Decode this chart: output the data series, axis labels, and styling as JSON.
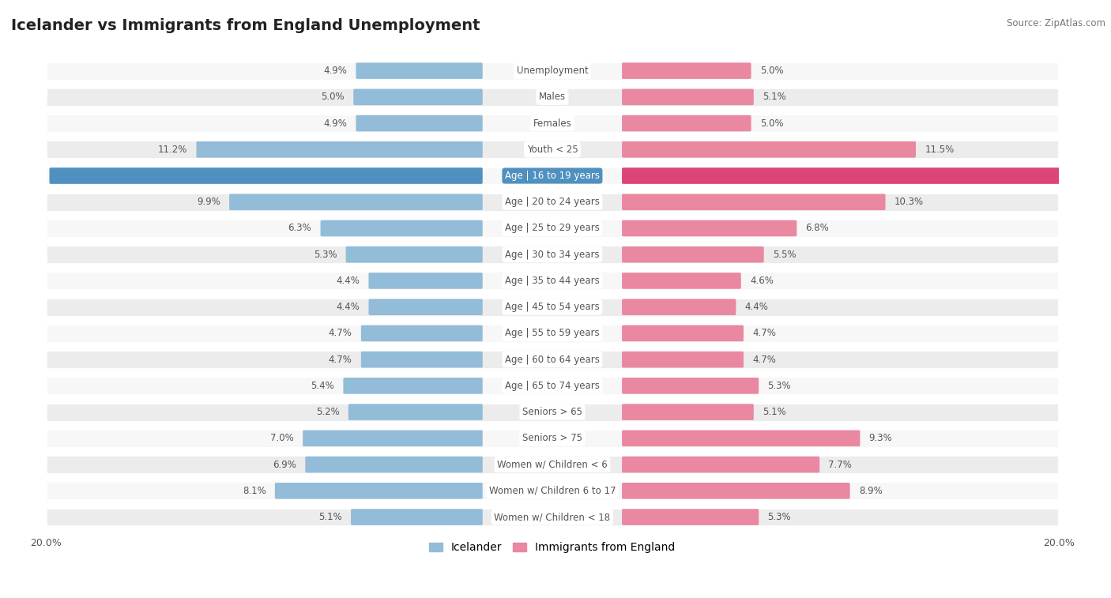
{
  "title": "Icelander vs Immigrants from England Unemployment",
  "source": "Source: ZipAtlas.com",
  "categories": [
    "Unemployment",
    "Males",
    "Females",
    "Youth < 25",
    "Age | 16 to 19 years",
    "Age | 20 to 24 years",
    "Age | 25 to 29 years",
    "Age | 30 to 34 years",
    "Age | 35 to 44 years",
    "Age | 45 to 54 years",
    "Age | 55 to 59 years",
    "Age | 60 to 64 years",
    "Age | 65 to 74 years",
    "Seniors > 65",
    "Seniors > 75",
    "Women w/ Children < 6",
    "Women w/ Children 6 to 17",
    "Women w/ Children < 18"
  ],
  "icelander": [
    4.9,
    5.0,
    4.9,
    11.2,
    17.0,
    9.9,
    6.3,
    5.3,
    4.4,
    4.4,
    4.7,
    4.7,
    5.4,
    5.2,
    7.0,
    6.9,
    8.1,
    5.1
  ],
  "england": [
    5.0,
    5.1,
    5.0,
    11.5,
    17.3,
    10.3,
    6.8,
    5.5,
    4.6,
    4.4,
    4.7,
    4.7,
    5.3,
    5.1,
    9.3,
    7.7,
    8.9,
    5.3
  ],
  "icelander_color": "#92bcd8",
  "england_color": "#e988a0",
  "highlight_icelander_color": "#5090c0",
  "highlight_england_color": "#dd4477",
  "axis_max": 20.0,
  "title_fontsize": 14,
  "legend_icelander": "Icelander",
  "legend_england": "Immigrants from England",
  "row_bg_light": "#f7f7f7",
  "row_bg_dark": "#ececec"
}
